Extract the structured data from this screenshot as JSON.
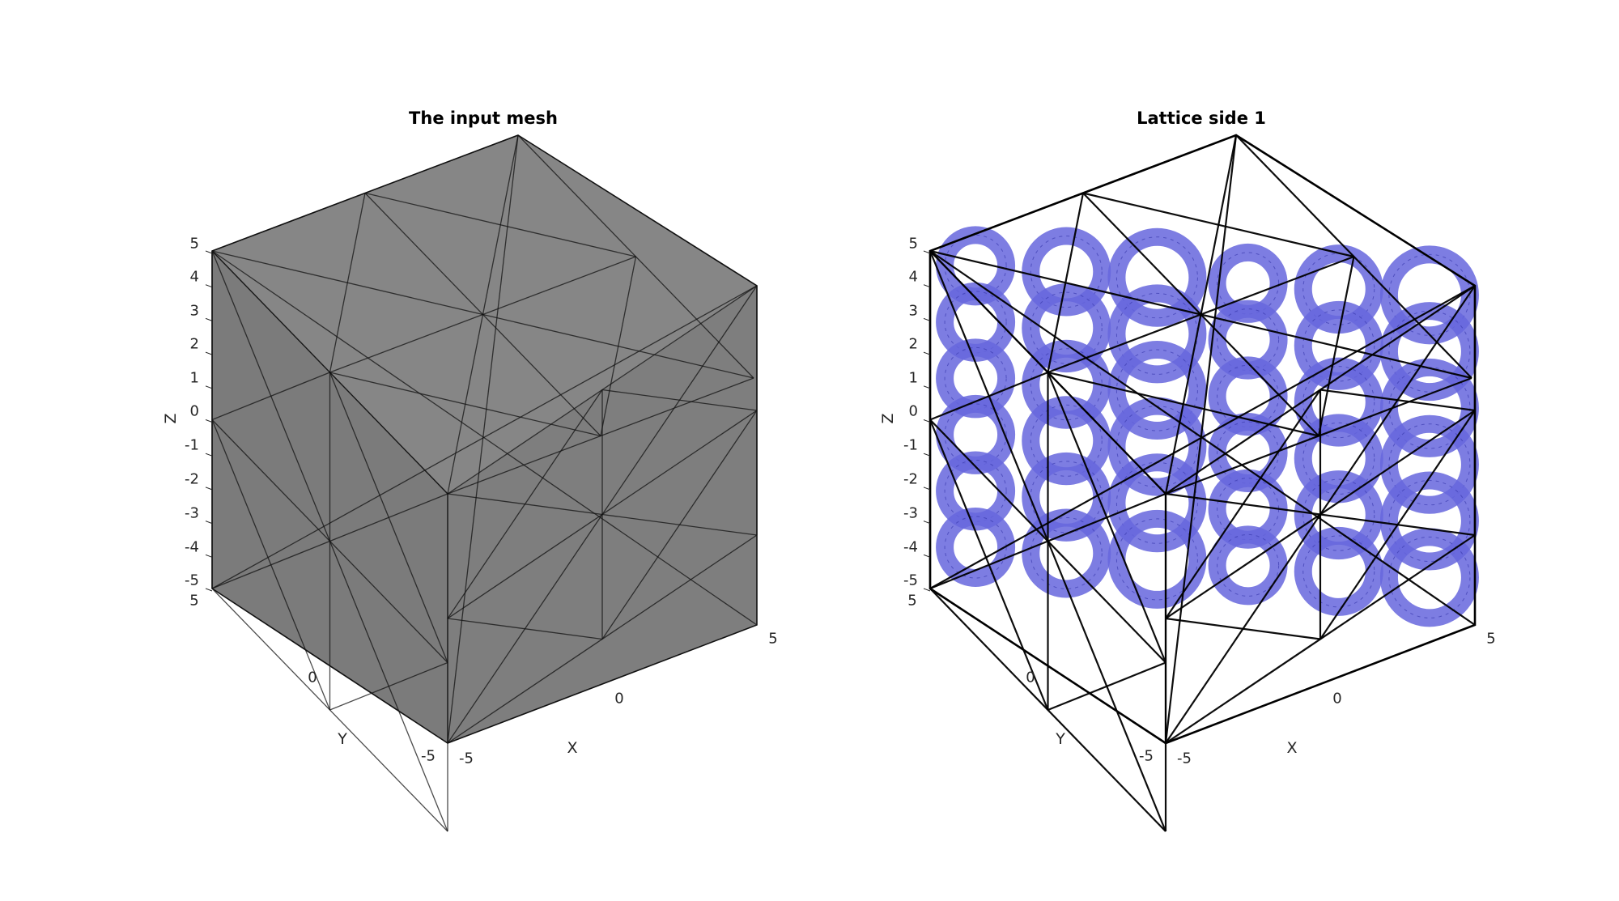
{
  "panels": [
    {
      "title": "The input mesh",
      "z_ticks": [
        "5",
        "4",
        "3",
        "2",
        "1",
        "0",
        "-1",
        "-2",
        "-3",
        "-4",
        "-5"
      ],
      "y_ticks": [
        "5",
        "0",
        "-5"
      ],
      "x_ticks": [
        "-5",
        "0",
        "5"
      ],
      "xlabel": "X",
      "ylabel": "Y",
      "zlabel": "Z",
      "face_color": "#6e6e6e",
      "edge_color": "#111111"
    },
    {
      "title": "Lattice side 1",
      "z_ticks": [
        "5",
        "4",
        "3",
        "2",
        "1",
        "0",
        "-1",
        "-2",
        "-3",
        "-4",
        "-5"
      ],
      "y_ticks": [
        "5",
        "0",
        "-5"
      ],
      "x_ticks": [
        "-5",
        "0",
        "5"
      ],
      "xlabel": "X",
      "ylabel": "Y",
      "zlabel": "Z",
      "face_color": "#6666dd",
      "edge_color": "#000000"
    }
  ],
  "view": {
    "projection": "isometric",
    "axis_limits": {
      "x": [
        -5,
        5
      ],
      "y": [
        -5,
        5
      ],
      "z": [
        -5,
        5
      ]
    },
    "box_visible": true,
    "grid": false
  }
}
